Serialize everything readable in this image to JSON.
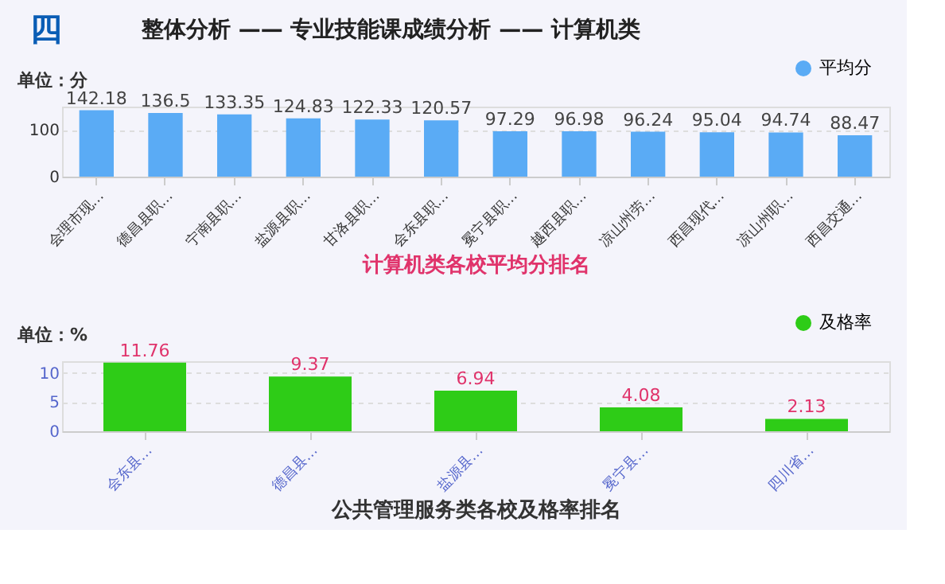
{
  "chart_data": [
    {
      "type": "bar",
      "title": "整体分析 —— 专业技能课成绩分析 —— 计算机类",
      "annotations": [
        "四"
      ],
      "ylabel": "单位：分",
      "xlabel": "计算机类各校平均分排名",
      "categories": [
        "会理市现…",
        "德昌县职…",
        "宁南县职…",
        "盐源县职…",
        "甘洛县职…",
        "会东县职…",
        "冕宁县职…",
        "越西县职…",
        "凉山州劳…",
        "西昌现代…",
        "凉山州职…",
        "西昌交通…"
      ],
      "series": [
        {
          "name": "平均分",
          "color": "#5aabf5",
          "values": [
            142.18,
            136.5,
            133.35,
            124.83,
            122.33,
            120.57,
            97.29,
            96.98,
            96.24,
            95.04,
            94.74,
            88.47
          ]
        }
      ],
      "ylim": [
        0,
        150
      ],
      "yticks": [
        0,
        100
      ],
      "grid": "y",
      "legend": "top right",
      "data_labels": true
    },
    {
      "type": "bar",
      "ylabel": "单位：%",
      "xlabel": "公共管理服务类各校及格率排名",
      "categories": [
        "会东县…",
        "德昌县…",
        "盐源县…",
        "冕宁县…",
        "四川省…"
      ],
      "series": [
        {
          "name": "及格率",
          "color": "#2ecc17",
          "values": [
            11.76,
            9.37,
            6.94,
            4.08,
            2.13
          ]
        }
      ],
      "ylim": [
        0,
        12
      ],
      "yticks": [
        0,
        5,
        10
      ],
      "grid": "y",
      "legend": "top right",
      "data_labels": true
    }
  ]
}
